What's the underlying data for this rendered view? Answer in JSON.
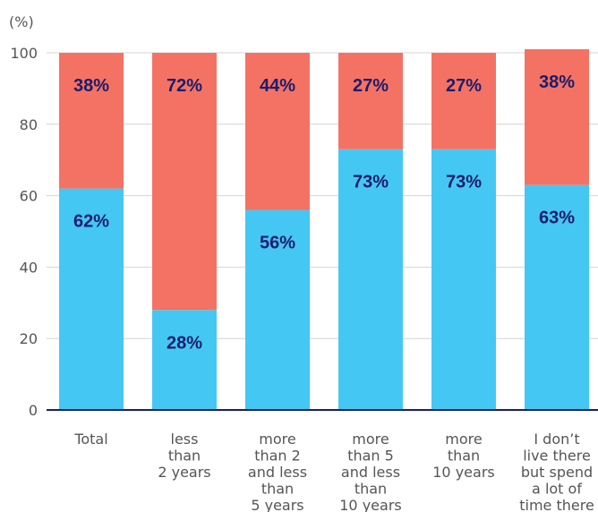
{
  "chart_data": {
    "type": "bar",
    "stacked": true,
    "unit_label": "(%)",
    "y_ticks": [
      "0",
      "20",
      "40",
      "60",
      "80",
      "100"
    ],
    "ylim": [
      0,
      100
    ],
    "grid": true,
    "categories": [
      [
        "Total"
      ],
      [
        "less",
        "than",
        "2 years"
      ],
      [
        "more",
        "than 2",
        "and less",
        "than",
        "5 years"
      ],
      [
        "more",
        "than 5",
        "and less",
        "than",
        "10 years"
      ],
      [
        "more",
        "than",
        "10 years"
      ],
      [
        "I don’t",
        "live there",
        "but spend",
        "a lot of",
        "time there"
      ]
    ],
    "series": [
      {
        "color": "#45c7f4",
        "values": [
          62,
          28,
          56,
          73,
          73,
          63
        ],
        "labels": [
          "62%",
          "28%",
          "56%",
          "73%",
          "73%",
          "63%"
        ]
      },
      {
        "color": "#f47264",
        "values": [
          38,
          72,
          44,
          27,
          27,
          38
        ],
        "labels": [
          "38%",
          "72%",
          "44%",
          "27%",
          "27%",
          "38%"
        ]
      }
    ]
  }
}
